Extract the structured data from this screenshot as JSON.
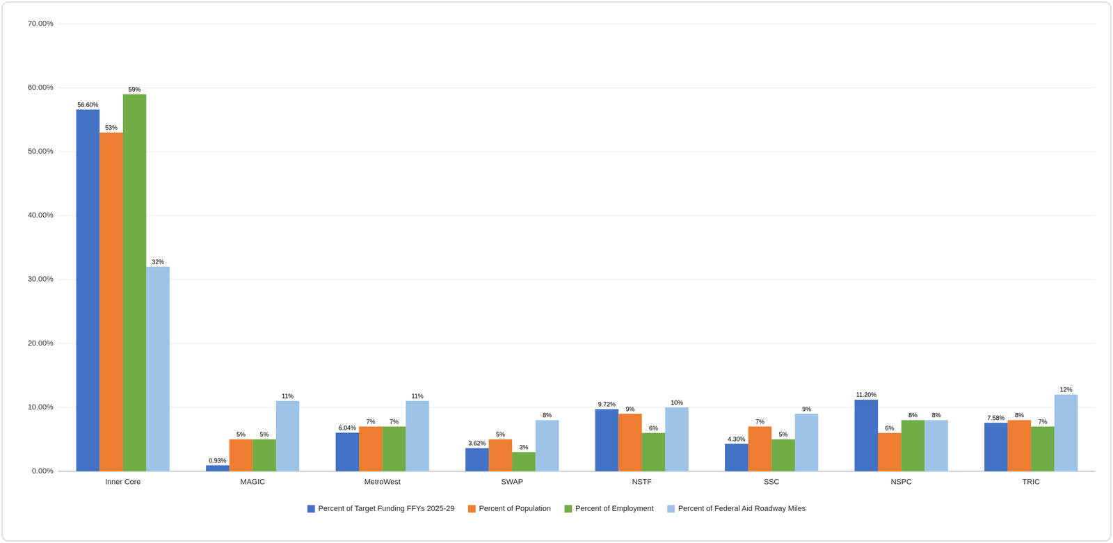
{
  "chart_data": {
    "type": "bar",
    "categories": [
      "Inner Core",
      "MAGIC",
      "MetroWest",
      "SWAP",
      "NSTF",
      "SSC",
      "NSPC",
      "TRIC"
    ],
    "series": [
      {
        "name": "Percent of Target Funding FFYs 2025-29",
        "color": "#4472C4",
        "values": [
          56.6,
          0.93,
          6.04,
          3.62,
          9.72,
          4.3,
          11.2,
          7.58
        ],
        "value_labels": [
          "56.60%",
          "0.93%",
          "6.04%",
          "3.62%",
          "9.72%",
          "4.30%",
          "11.20%",
          "7.58%"
        ]
      },
      {
        "name": "Percent of Population",
        "color": "#ED7D31",
        "values": [
          53,
          5,
          7,
          5,
          9,
          7,
          6,
          8
        ],
        "value_labels": [
          "53%",
          "5%",
          "7%",
          "5%",
          "9%",
          "7%",
          "6%",
          "8%"
        ]
      },
      {
        "name": "Percent of Employment",
        "color": "#70AD47",
        "values": [
          59,
          5,
          7,
          3,
          6,
          5,
          8,
          7
        ],
        "value_labels": [
          "59%",
          "5%",
          "7%",
          "3%",
          "6%",
          "5%",
          "8%",
          "7%"
        ]
      },
      {
        "name": "Percent of Federal Aid Roadway Miles",
        "color": "#9DC3E6",
        "values": [
          32,
          11,
          11,
          8,
          10,
          9,
          8,
          12
        ],
        "value_labels": [
          "32%",
          "11%",
          "11%",
          "8%",
          "10%",
          "9%",
          "8%",
          "12%"
        ]
      }
    ],
    "ylim": [
      0,
      70
    ],
    "yticks": [
      {
        "value": 0,
        "label": "0.00%"
      },
      {
        "value": 10,
        "label": "10.00%"
      },
      {
        "value": 20,
        "label": "20.00%"
      },
      {
        "value": 30,
        "label": "30.00%"
      },
      {
        "value": 40,
        "label": "40.00%"
      },
      {
        "value": 50,
        "label": "50.00%"
      },
      {
        "value": 60,
        "label": "60.00%"
      },
      {
        "value": 70,
        "label": "70.00%"
      }
    ],
    "grid": true,
    "legend": "bottom",
    "data_labels": true
  }
}
